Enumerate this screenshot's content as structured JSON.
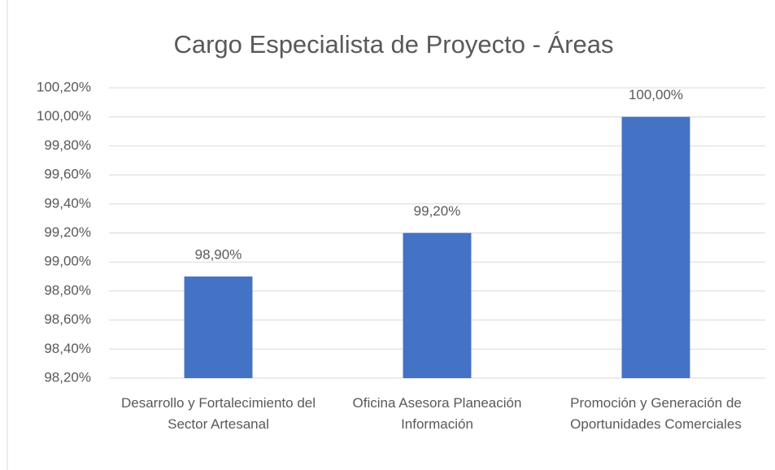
{
  "chart_data": {
    "type": "bar",
    "title": "Cargo Especialista de Proyecto - Áreas",
    "categories": [
      "Desarrollo y Fortalecimiento del Sector Artesanal",
      "Oficina Asesora Planeación Información",
      "Promoción y Generación de Oportunidades Comerciales"
    ],
    "values": [
      98.9,
      99.2,
      100.0
    ],
    "value_labels": [
      "98,90%",
      "99,20%",
      "100,00%"
    ],
    "color": "#4472c4",
    "ylim": [
      98.2,
      100.2
    ],
    "yticks": [
      {
        "value": 98.2,
        "label": "98,20%"
      },
      {
        "value": 98.4,
        "label": "98,40%"
      },
      {
        "value": 98.6,
        "label": "98,60%"
      },
      {
        "value": 98.8,
        "label": "98,80%"
      },
      {
        "value": 99.0,
        "label": "99,00%"
      },
      {
        "value": 99.2,
        "label": "99,20%"
      },
      {
        "value": 99.4,
        "label": "99,40%"
      },
      {
        "value": 99.6,
        "label": "99,60%"
      },
      {
        "value": 99.8,
        "label": "99,80%"
      },
      {
        "value": 100.0,
        "label": "100,00%"
      },
      {
        "value": 100.2,
        "label": "100,20%"
      }
    ],
    "grid": true
  }
}
